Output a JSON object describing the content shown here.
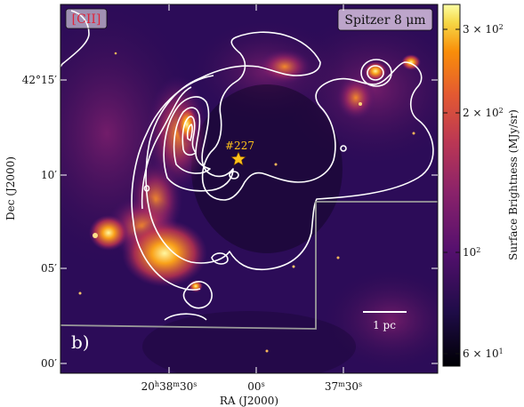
{
  "panel_label": "b)",
  "tags": {
    "left": "[CII]",
    "right": "Spitzer 8 μm"
  },
  "source": {
    "name": "#227"
  },
  "scale_bar": {
    "label": "1 pc"
  },
  "axes": {
    "xlabel": "RA (J2000)",
    "ylabel": "Dec (J2000)",
    "xticks": [
      "20h38m30s",
      "00s",
      "37m30s"
    ],
    "yticks": [
      "42°15′",
      "10′",
      "05′",
      "00′"
    ]
  },
  "colorbar": {
    "label": "Surface Brightness (MJy/sr)",
    "ticks": [
      "3 × 10²",
      "2 × 10²",
      "10²",
      "6 × 10¹"
    ],
    "colormap": "inferno",
    "scale": "log"
  },
  "colors": {
    "contour": "#ffffff",
    "source_marker": "#ffc21a",
    "tag_left_text": "#e0243a",
    "tag_right_bg": "#cdb6d8",
    "outline": "#9a9a9a"
  }
}
